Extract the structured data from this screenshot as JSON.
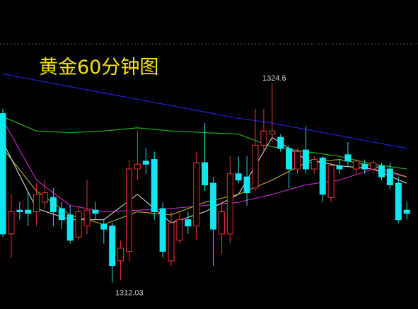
{
  "chart_data": {
    "type": "candlestick",
    "title": "黄金60分钟图",
    "annotations": [
      "1324.6",
      "1312.03"
    ],
    "up_color": "#e8362f",
    "down_color": "#12e6ee",
    "ylim": [
      1310.36,
      1329.87
    ],
    "open": [
      1322.7,
      1315.1,
      1316.6,
      1316.6,
      1316.5,
      1317.1,
      1317.4,
      1316.7,
      1316.3,
      1314.9,
      1315.6,
      1316.6,
      1315.7,
      1315.6,
      1313.4,
      1314.0,
      1319.2,
      1319.7,
      1319.8,
      1316.7,
      1313.4,
      1314.7,
      1316.0,
      1315.6,
      1319.6,
      1318.3,
      1315.1,
      1315.1,
      1318.9,
      1318.7,
      1318.0,
      1320.7,
      1321.4,
      1321.2,
      1320.5,
      1319.2,
      1320.4,
      1319.2,
      1319.9,
      1317.4,
      1319.4,
      1320.1,
      1319.2,
      1319.5,
      1319.2,
      1319.4,
      1319.2,
      1318.3,
      1316.6
    ],
    "close": [
      1315.1,
      1316.5,
      1316.5,
      1316.4,
      1317.6,
      1317.7,
      1316.5,
      1316.0,
      1314.7,
      1316.5,
      1316.6,
      1316.4,
      1315.4,
      1313.1,
      1314.2,
      1319.2,
      1319.5,
      1319.5,
      1316.5,
      1314.0,
      1315.8,
      1316.0,
      1315.6,
      1319.6,
      1318.2,
      1315.4,
      1316.5,
      1318.9,
      1318.5,
      1317.7,
      1320.7,
      1321.6,
      1321.6,
      1320.5,
      1319.2,
      1320.3,
      1319.2,
      1319.8,
      1317.6,
      1319.4,
      1319.2,
      1319.7,
      1319.7,
      1319.2,
      1319.6,
      1318.7,
      1318.2,
      1316.0,
      1316.4
    ],
    "high": [
      1323.0,
      1317.6,
      1317.1,
      1317.8,
      1318.3,
      1318.5,
      1318.0,
      1317.1,
      1316.9,
      1316.9,
      1318.5,
      1317.1,
      1316.0,
      1315.8,
      1314.7,
      1319.8,
      1321.6,
      1320.5,
      1320.3,
      1317.1,
      1316.5,
      1316.5,
      1316.5,
      1320.3,
      1322.1,
      1318.7,
      1317.1,
      1320.0,
      1320.0,
      1320.0,
      1323.0,
      1323.0,
      1324.6,
      1321.4,
      1320.7,
      1320.5,
      1321.9,
      1320.0,
      1320.0,
      1319.6,
      1319.8,
      1320.9,
      1319.8,
      1319.8,
      1319.8,
      1319.6,
      1319.6,
      1318.7,
      1317.1
    ],
    "low": [
      1314.9,
      1313.6,
      1316.0,
      1315.6,
      1315.6,
      1316.7,
      1315.6,
      1315.4,
      1314.5,
      1314.7,
      1315.1,
      1316.0,
      1314.5,
      1312.03,
      1312.2,
      1313.4,
      1318.5,
      1318.9,
      1316.0,
      1313.6,
      1313.1,
      1314.5,
      1315.1,
      1314.7,
      1317.8,
      1313.1,
      1313.8,
      1314.5,
      1318.3,
      1316.9,
      1317.8,
      1320.3,
      1320.9,
      1320.3,
      1318.0,
      1318.9,
      1318.9,
      1318.9,
      1317.1,
      1317.1,
      1318.9,
      1319.4,
      1318.9,
      1318.9,
      1318.9,
      1318.5,
      1317.9,
      1315.8,
      1316.0
    ],
    "lines": [
      {
        "color": "#2020d8",
        "x": [
          0,
          4,
          8,
          12,
          16,
          20,
          24,
          28,
          32,
          36,
          40,
          44,
          48
        ],
        "values": [
          1325.2,
          1324.8,
          1324.4,
          1324.0,
          1323.6,
          1323.2,
          1322.8,
          1322.4,
          1322.1,
          1321.7,
          1321.3,
          1320.9,
          1320.5
        ]
      },
      {
        "color": "#1fae1f",
        "x": [
          0,
          4,
          8,
          12,
          16,
          20,
          24,
          28,
          32,
          36,
          40,
          44,
          48
        ],
        "values": [
          1322.5,
          1321.6,
          1321.5,
          1321.6,
          1321.8,
          1321.6,
          1321.5,
          1321.4,
          1320.6,
          1320.3,
          1320.0,
          1319.5,
          1319.2
        ]
      },
      {
        "color": "#c020c0",
        "x": [
          0,
          4,
          8,
          12,
          16,
          20,
          24,
          28,
          32,
          36,
          40,
          44,
          48
        ],
        "values": [
          1322.3,
          1318.5,
          1316.9,
          1316.5,
          1316.6,
          1316.7,
          1316.9,
          1317.1,
          1317.6,
          1318.2,
          1318.5,
          1319.2,
          1318.7
        ]
      },
      {
        "color": "#b0a020",
        "x": [
          0,
          4,
          8,
          12,
          16,
          20,
          24,
          28,
          32,
          36,
          40,
          44,
          48
        ],
        "values": [
          1320.5,
          1317.8,
          1316.3,
          1315.7,
          1316.5,
          1316.3,
          1317.1,
          1317.6,
          1318.5,
          1319.6,
          1319.8,
          1319.4,
          1318.7
        ]
      },
      {
        "color": "#c8c8c8",
        "x": [
          0,
          4,
          8,
          12,
          16,
          20,
          24,
          28,
          32,
          36,
          40,
          44,
          48
        ],
        "values": [
          1320.9,
          1316.7,
          1316.0,
          1316.0,
          1317.6,
          1315.8,
          1316.5,
          1317.6,
          1321.2,
          1319.8,
          1319.4,
          1319.2,
          1318.3
        ]
      }
    ]
  }
}
